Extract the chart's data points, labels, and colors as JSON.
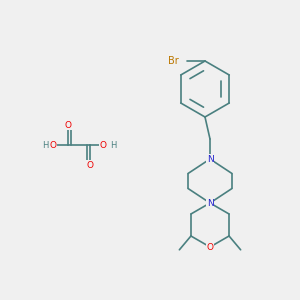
{
  "bg_color": "#f0f0f0",
  "bond_color": "#4a8080",
  "bond_width": 1.2,
  "atom_colors": {
    "O": "#ee0000",
    "N": "#2222cc",
    "Br": "#bb7700",
    "C": "#4a8080",
    "H": "#4a8080"
  },
  "font_size": 6.5,
  "title": ""
}
